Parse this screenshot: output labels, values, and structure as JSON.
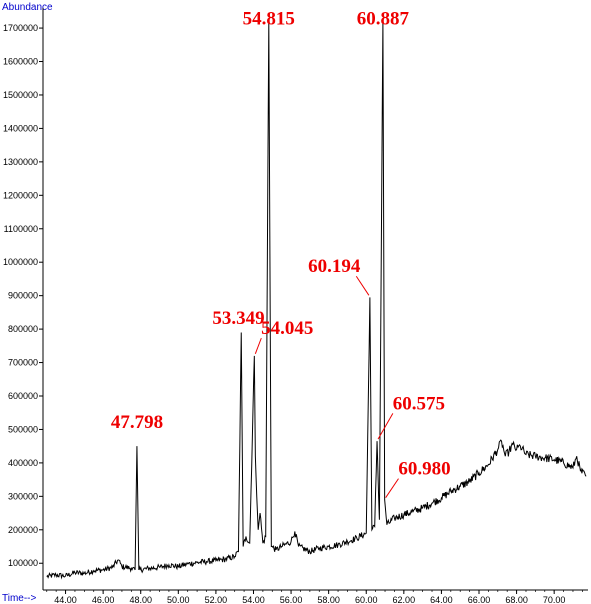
{
  "chart_data": {
    "type": "line",
    "ylabel": "Abundance",
    "xlabel": "Time-->",
    "xlim": [
      42.8,
      71.8
    ],
    "ylim": [
      20000,
      1760000
    ],
    "x_ticks": [
      "44.00",
      "46.00",
      "48.00",
      "50.00",
      "52.00",
      "54.00",
      "56.00",
      "58.00",
      "60.00",
      "62.00",
      "64.00",
      "66.00",
      "68.00",
      "70.00"
    ],
    "y_ticks": [
      "100000",
      "200000",
      "300000",
      "400000",
      "500000",
      "600000",
      "700000",
      "800000",
      "900000",
      "1000000",
      "1100000",
      "1200000",
      "1300000",
      "1400000",
      "1500000",
      "1600000",
      "1700000"
    ],
    "colors": {
      "trace": "#000000",
      "peak_label": "#ee0000",
      "axis_title": "#0000cc"
    },
    "series": [
      {
        "values": [
          [
            43.0,
            60000
          ],
          [
            43.5,
            65000
          ],
          [
            44.0,
            62000
          ],
          [
            44.5,
            72000
          ],
          [
            45.0,
            70000
          ],
          [
            45.5,
            78000
          ],
          [
            46.0,
            80000
          ],
          [
            46.5,
            88000
          ],
          [
            46.8,
            110000
          ],
          [
            47.0,
            90000
          ],
          [
            47.5,
            85000
          ],
          [
            47.7,
            80000
          ],
          [
            47.798,
            450000
          ],
          [
            47.9,
            80000
          ],
          [
            48.5,
            85000
          ],
          [
            49.0,
            88000
          ],
          [
            49.5,
            95000
          ],
          [
            50.0,
            90000
          ],
          [
            50.5,
            98000
          ],
          [
            51.0,
            102000
          ],
          [
            51.5,
            105000
          ],
          [
            52.0,
            108000
          ],
          [
            52.5,
            112000
          ],
          [
            53.0,
            120000
          ],
          [
            53.2,
            135000
          ],
          [
            53.349,
            790000
          ],
          [
            53.45,
            150000
          ],
          [
            53.6,
            180000
          ],
          [
            53.8,
            160000
          ],
          [
            54.045,
            720000
          ],
          [
            54.1,
            420000
          ],
          [
            54.25,
            200000
          ],
          [
            54.35,
            250000
          ],
          [
            54.5,
            160000
          ],
          [
            54.65,
            180000
          ],
          [
            54.815,
            1720000
          ],
          [
            54.95,
            150000
          ],
          [
            55.2,
            140000
          ],
          [
            55.5,
            150000
          ],
          [
            56.0,
            165000
          ],
          [
            56.2,
            195000
          ],
          [
            56.4,
            150000
          ],
          [
            57.0,
            135000
          ],
          [
            57.5,
            145000
          ],
          [
            58.0,
            150000
          ],
          [
            58.5,
            155000
          ],
          [
            59.0,
            165000
          ],
          [
            59.5,
            175000
          ],
          [
            60.0,
            190000
          ],
          [
            60.194,
            895000
          ],
          [
            60.3,
            200000
          ],
          [
            60.45,
            210000
          ],
          [
            60.575,
            465000
          ],
          [
            60.7,
            230000
          ],
          [
            60.887,
            1720000
          ],
          [
            60.98,
            290000
          ],
          [
            61.1,
            215000
          ],
          [
            61.5,
            235000
          ],
          [
            62.0,
            245000
          ],
          [
            62.5,
            255000
          ],
          [
            63.0,
            265000
          ],
          [
            63.5,
            280000
          ],
          [
            64.0,
            295000
          ],
          [
            64.5,
            315000
          ],
          [
            65.0,
            330000
          ],
          [
            65.5,
            345000
          ],
          [
            66.0,
            370000
          ],
          [
            66.5,
            395000
          ],
          [
            67.0,
            440000
          ],
          [
            67.2,
            465000
          ],
          [
            67.4,
            420000
          ],
          [
            67.6,
            435000
          ],
          [
            67.8,
            455000
          ],
          [
            68.0,
            440000
          ],
          [
            68.2,
            450000
          ],
          [
            68.5,
            425000
          ],
          [
            69.0,
            420000
          ],
          [
            69.5,
            415000
          ],
          [
            70.0,
            410000
          ],
          [
            70.5,
            400000
          ],
          [
            71.0,
            385000
          ],
          [
            71.2,
            420000
          ],
          [
            71.4,
            375000
          ],
          [
            71.7,
            360000
          ]
        ]
      }
    ],
    "peak_labels": [
      {
        "text": "47.798",
        "x": 47.798,
        "y": 450000,
        "label_x": 47.8,
        "label_y": 505000,
        "leader": false
      },
      {
        "text": "53.349",
        "x": 53.349,
        "y": 790000,
        "label_x": 53.2,
        "label_y": 815000,
        "leader": false
      },
      {
        "text": "54.045",
        "x": 54.045,
        "y": 720000,
        "label_x": 55.8,
        "label_y": 785000,
        "leader": true
      },
      {
        "text": "54.815",
        "x": 54.815,
        "y": 1720000,
        "label_x": 54.815,
        "label_y": 1710000,
        "leader": false
      },
      {
        "text": "60.194",
        "x": 60.194,
        "y": 895000,
        "label_x": 58.3,
        "label_y": 970000,
        "leader": true
      },
      {
        "text": "60.887",
        "x": 60.887,
        "y": 1720000,
        "label_x": 60.887,
        "label_y": 1710000,
        "leader": false
      },
      {
        "text": "60.575",
        "x": 60.575,
        "y": 465000,
        "label_x": 62.8,
        "label_y": 560000,
        "leader": true
      },
      {
        "text": "60.980",
        "x": 60.98,
        "y": 290000,
        "label_x": 63.1,
        "label_y": 365000,
        "leader": true
      }
    ]
  }
}
